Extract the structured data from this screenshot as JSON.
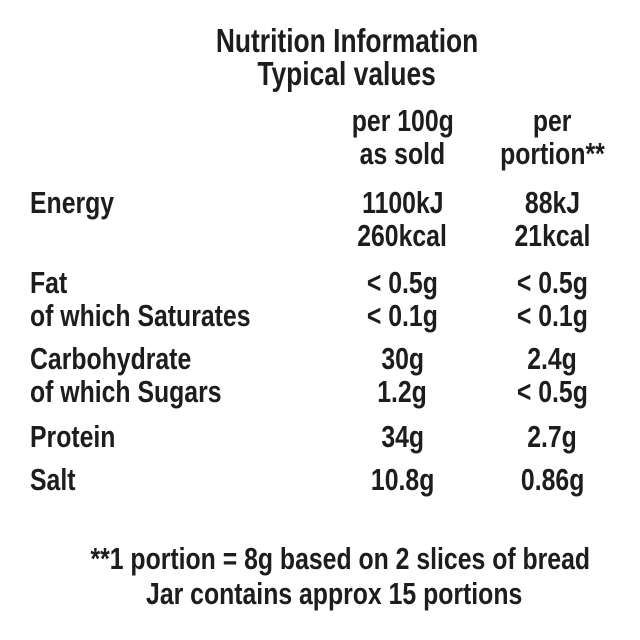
{
  "colors": {
    "text": "#1d1d1b",
    "background": "#ffffff"
  },
  "header": {
    "title": "Nutrition Information",
    "subtitle": "Typical values"
  },
  "columns": {
    "per_100g": {
      "line1": "per 100g",
      "line2": "as sold"
    },
    "per_portion": {
      "line1": "per",
      "line2": "portion**"
    }
  },
  "table": {
    "rows": [
      {
        "label": "Energy",
        "per_100g": "1100kJ",
        "per_portion": "88kJ"
      },
      {
        "label": "",
        "per_100g": "260kcal",
        "per_portion": "21kcal"
      },
      {
        "label": "Fat",
        "per_100g": "< 0.5g",
        "per_portion": "< 0.5g"
      },
      {
        "label": "of which Saturates",
        "per_100g": "< 0.1g",
        "per_portion": "< 0.1g"
      },
      {
        "label": "Carbohydrate",
        "per_100g": "30g",
        "per_portion": "2.4g"
      },
      {
        "label": "of which Sugars",
        "per_100g": "1.2g",
        "per_portion": "< 0.5g"
      },
      {
        "label": "Protein",
        "per_100g": "34g",
        "per_portion": "2.7g"
      },
      {
        "label": "Salt",
        "per_100g": "10.8g",
        "per_portion": "0.86g"
      }
    ]
  },
  "footer": {
    "note1": "**1 portion = 8g based on 2 slices of bread",
    "note2": "Jar contains approx 15 portions"
  }
}
